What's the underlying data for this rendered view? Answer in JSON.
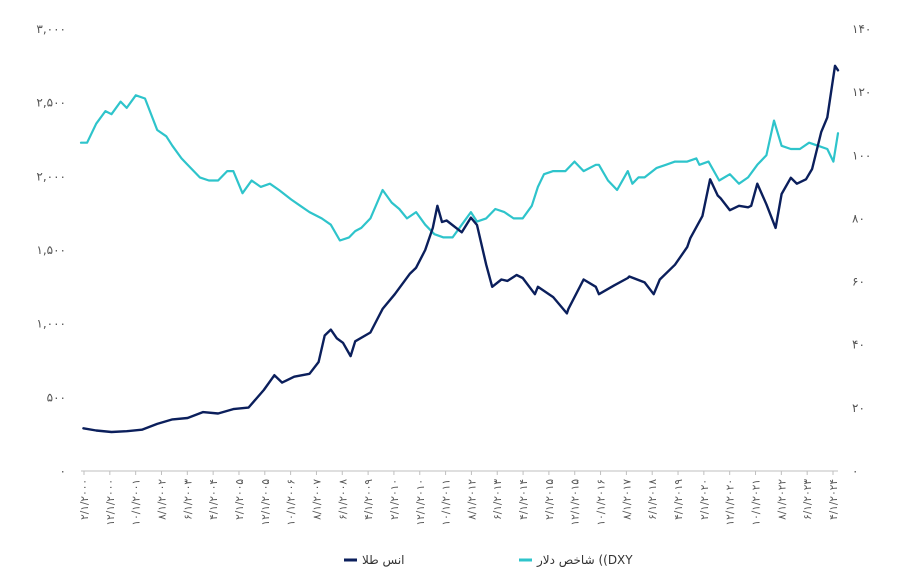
{
  "chart_data": {
    "type": "line",
    "title": "",
    "xlabel": "",
    "ylabel_left": "",
    "ylabel_right": "",
    "y_left_lim": [
      0,
      3000
    ],
    "y_right_lim": [
      0,
      140
    ],
    "y_left_ticks": [
      "۰",
      "۵۰۰",
      "۱,۰۰۰",
      "۱,۵۰۰",
      "۲,۰۰۰",
      "۲,۵۰۰",
      "۳,۰۰۰"
    ],
    "y_right_ticks": [
      "۰",
      "۲۰",
      "۴۰",
      "۶۰",
      "۸۰",
      "۱۰۰",
      "۱۲۰",
      "۱۴۰"
    ],
    "x_range": [
      2000.0,
      2024.85
    ],
    "x_tick_labels": [
      "۲/۱/۲۰۰۰",
      "۱۲/۱/۲۰۰۰",
      "۱۰/۱/۲۰۰۱",
      "۸/۱/۲۰۰۲",
      "۶/۱/۲۰۰۳",
      "۴/۱/۲۰۰۴",
      "۲/۱/۲۰۰۵",
      "۱۲/۱/۲۰۰۵",
      "۱۰/۱/۲۰۰۶",
      "۸/۱/۲۰۰۷",
      "۶/۱/۲۰۰۸",
      "۴/۱/۲۰۰۹",
      "۲/۱/۲۰۱۰",
      "۱۲/۱/۲۰۱۰",
      "۱۰/۱/۲۰۱۱",
      "۸/۱/۲۰۱۲",
      "۶/۱/۲۰۱۳",
      "۴/۱/۲۰۱۴",
      "۲/۱/۲۰۱۵",
      "۱۲/۱/۲۰۱۵",
      "۱۰/۱/۲۰۱۶",
      "۸/۱/۲۰۱۷",
      "۶/۱/۲۰۱۸",
      "۴/۱/۲۰۱۹",
      "۲/۱/۲۰۲۰",
      "۱۲/۱/۲۰۲۰",
      "۱۰/۱/۲۰۲۱",
      "۸/۱/۲۰۲۲",
      "۶/۱/۲۰۲۳",
      "۴/۱/۲۰۲۴"
    ],
    "grid": false,
    "legend_position": "bottom-center",
    "series": [
      {
        "name": "انس طلا",
        "axis": "left",
        "color": "#0b1f5c",
        "x": [
          2000.08,
          2000.5,
          2001.0,
          2001.5,
          2002.0,
          2002.5,
          2003.0,
          2003.5,
          2004.0,
          2004.5,
          2005.0,
          2005.5,
          2006.0,
          2006.35,
          2006.6,
          2007.0,
          2007.5,
          2007.8,
          2008.0,
          2008.2,
          2008.4,
          2008.6,
          2008.85,
          2009.0,
          2009.5,
          2009.9,
          2010.3,
          2010.8,
          2011.0,
          2011.3,
          2011.55,
          2011.7,
          2011.85,
          2012.0,
          2012.5,
          2012.8,
          2013.0,
          2013.3,
          2013.5,
          2013.8,
          2014.0,
          2014.3,
          2014.5,
          2014.9,
          2015.0,
          2015.5,
          2015.95,
          2016.0,
          2016.5,
          2016.9,
          2017.0,
          2017.5,
          2017.95,
          2018.0,
          2018.5,
          2018.8,
          2019.0,
          2019.5,
          2019.9,
          2020.0,
          2020.4,
          2020.65,
          2020.9,
          2021.0,
          2021.3,
          2021.6,
          2021.9,
          2022.0,
          2022.2,
          2022.5,
          2022.8,
          2023.0,
          2023.3,
          2023.5,
          2023.8,
          2024.0,
          2024.3,
          2024.5,
          2024.75,
          2024.85
        ],
        "y": [
          290,
          275,
          265,
          270,
          280,
          320,
          350,
          360,
          400,
          390,
          420,
          430,
          550,
          650,
          600,
          640,
          660,
          740,
          920,
          960,
          900,
          870,
          780,
          880,
          940,
          1100,
          1200,
          1340,
          1380,
          1500,
          1650,
          1800,
          1690,
          1700,
          1620,
          1720,
          1670,
          1400,
          1250,
          1300,
          1290,
          1330,
          1310,
          1200,
          1250,
          1180,
          1070,
          1100,
          1300,
          1250,
          1200,
          1260,
          1310,
          1320,
          1280,
          1200,
          1300,
          1400,
          1520,
          1580,
          1730,
          1980,
          1870,
          1850,
          1770,
          1800,
          1790,
          1800,
          1950,
          1810,
          1650,
          1880,
          1990,
          1950,
          1980,
          2050,
          2300,
          2400,
          2750,
          2720
        ]
      },
      {
        "name": "شاخص دلار ((DXY",
        "axis": "right",
        "color": "#2ec4cb",
        "x": [
          2000.0,
          2000.2,
          2000.5,
          2000.8,
          2001.0,
          2001.3,
          2001.5,
          2001.8,
          2002.1,
          2002.5,
          2002.8,
          2003.0,
          2003.3,
          2003.5,
          2003.9,
          2004.2,
          2004.5,
          2004.8,
          2005.0,
          2005.3,
          2005.6,
          2005.9,
          2006.2,
          2006.5,
          2006.9,
          2007.2,
          2007.5,
          2007.9,
          2008.2,
          2008.5,
          2008.8,
          2009.0,
          2009.2,
          2009.5,
          2009.9,
          2010.2,
          2010.45,
          2010.7,
          2011.0,
          2011.3,
          2011.6,
          2011.9,
          2012.2,
          2012.5,
          2012.8,
          2013.0,
          2013.3,
          2013.6,
          2013.9,
          2014.2,
          2014.5,
          2014.8,
          2015.0,
          2015.2,
          2015.5,
          2015.9,
          2016.2,
          2016.5,
          2016.9,
          2017.0,
          2017.3,
          2017.6,
          2017.95,
          2018.1,
          2018.3,
          2018.5,
          2018.9,
          2019.2,
          2019.5,
          2019.9,
          2020.2,
          2020.3,
          2020.6,
          2020.95,
          2021.3,
          2021.6,
          2021.9,
          2022.2,
          2022.5,
          2022.75,
          2023.0,
          2023.3,
          2023.6,
          2023.9,
          2024.2,
          2024.5,
          2024.7,
          2024.85
        ],
        "y": [
          104,
          104,
          110,
          114,
          113,
          117,
          115,
          119,
          118,
          108,
          106,
          103,
          99,
          97,
          93,
          92,
          92,
          95,
          95,
          88,
          92,
          90,
          91,
          89,
          86,
          84,
          82,
          80,
          78,
          73,
          74,
          76,
          77,
          80,
          89,
          85,
          83,
          80,
          82,
          78,
          75,
          74,
          74,
          78,
          82,
          79,
          80,
          83,
          82,
          80,
          80,
          84,
          90,
          94,
          95,
          95,
          98,
          95,
          97,
          97,
          92,
          89,
          95,
          91,
          93,
          93,
          96,
          97,
          98,
          98,
          99,
          97,
          98,
          92,
          94,
          91,
          93,
          97,
          100,
          111,
          103,
          102,
          102,
          104,
          103,
          102,
          98,
          107
        ]
      }
    ]
  }
}
